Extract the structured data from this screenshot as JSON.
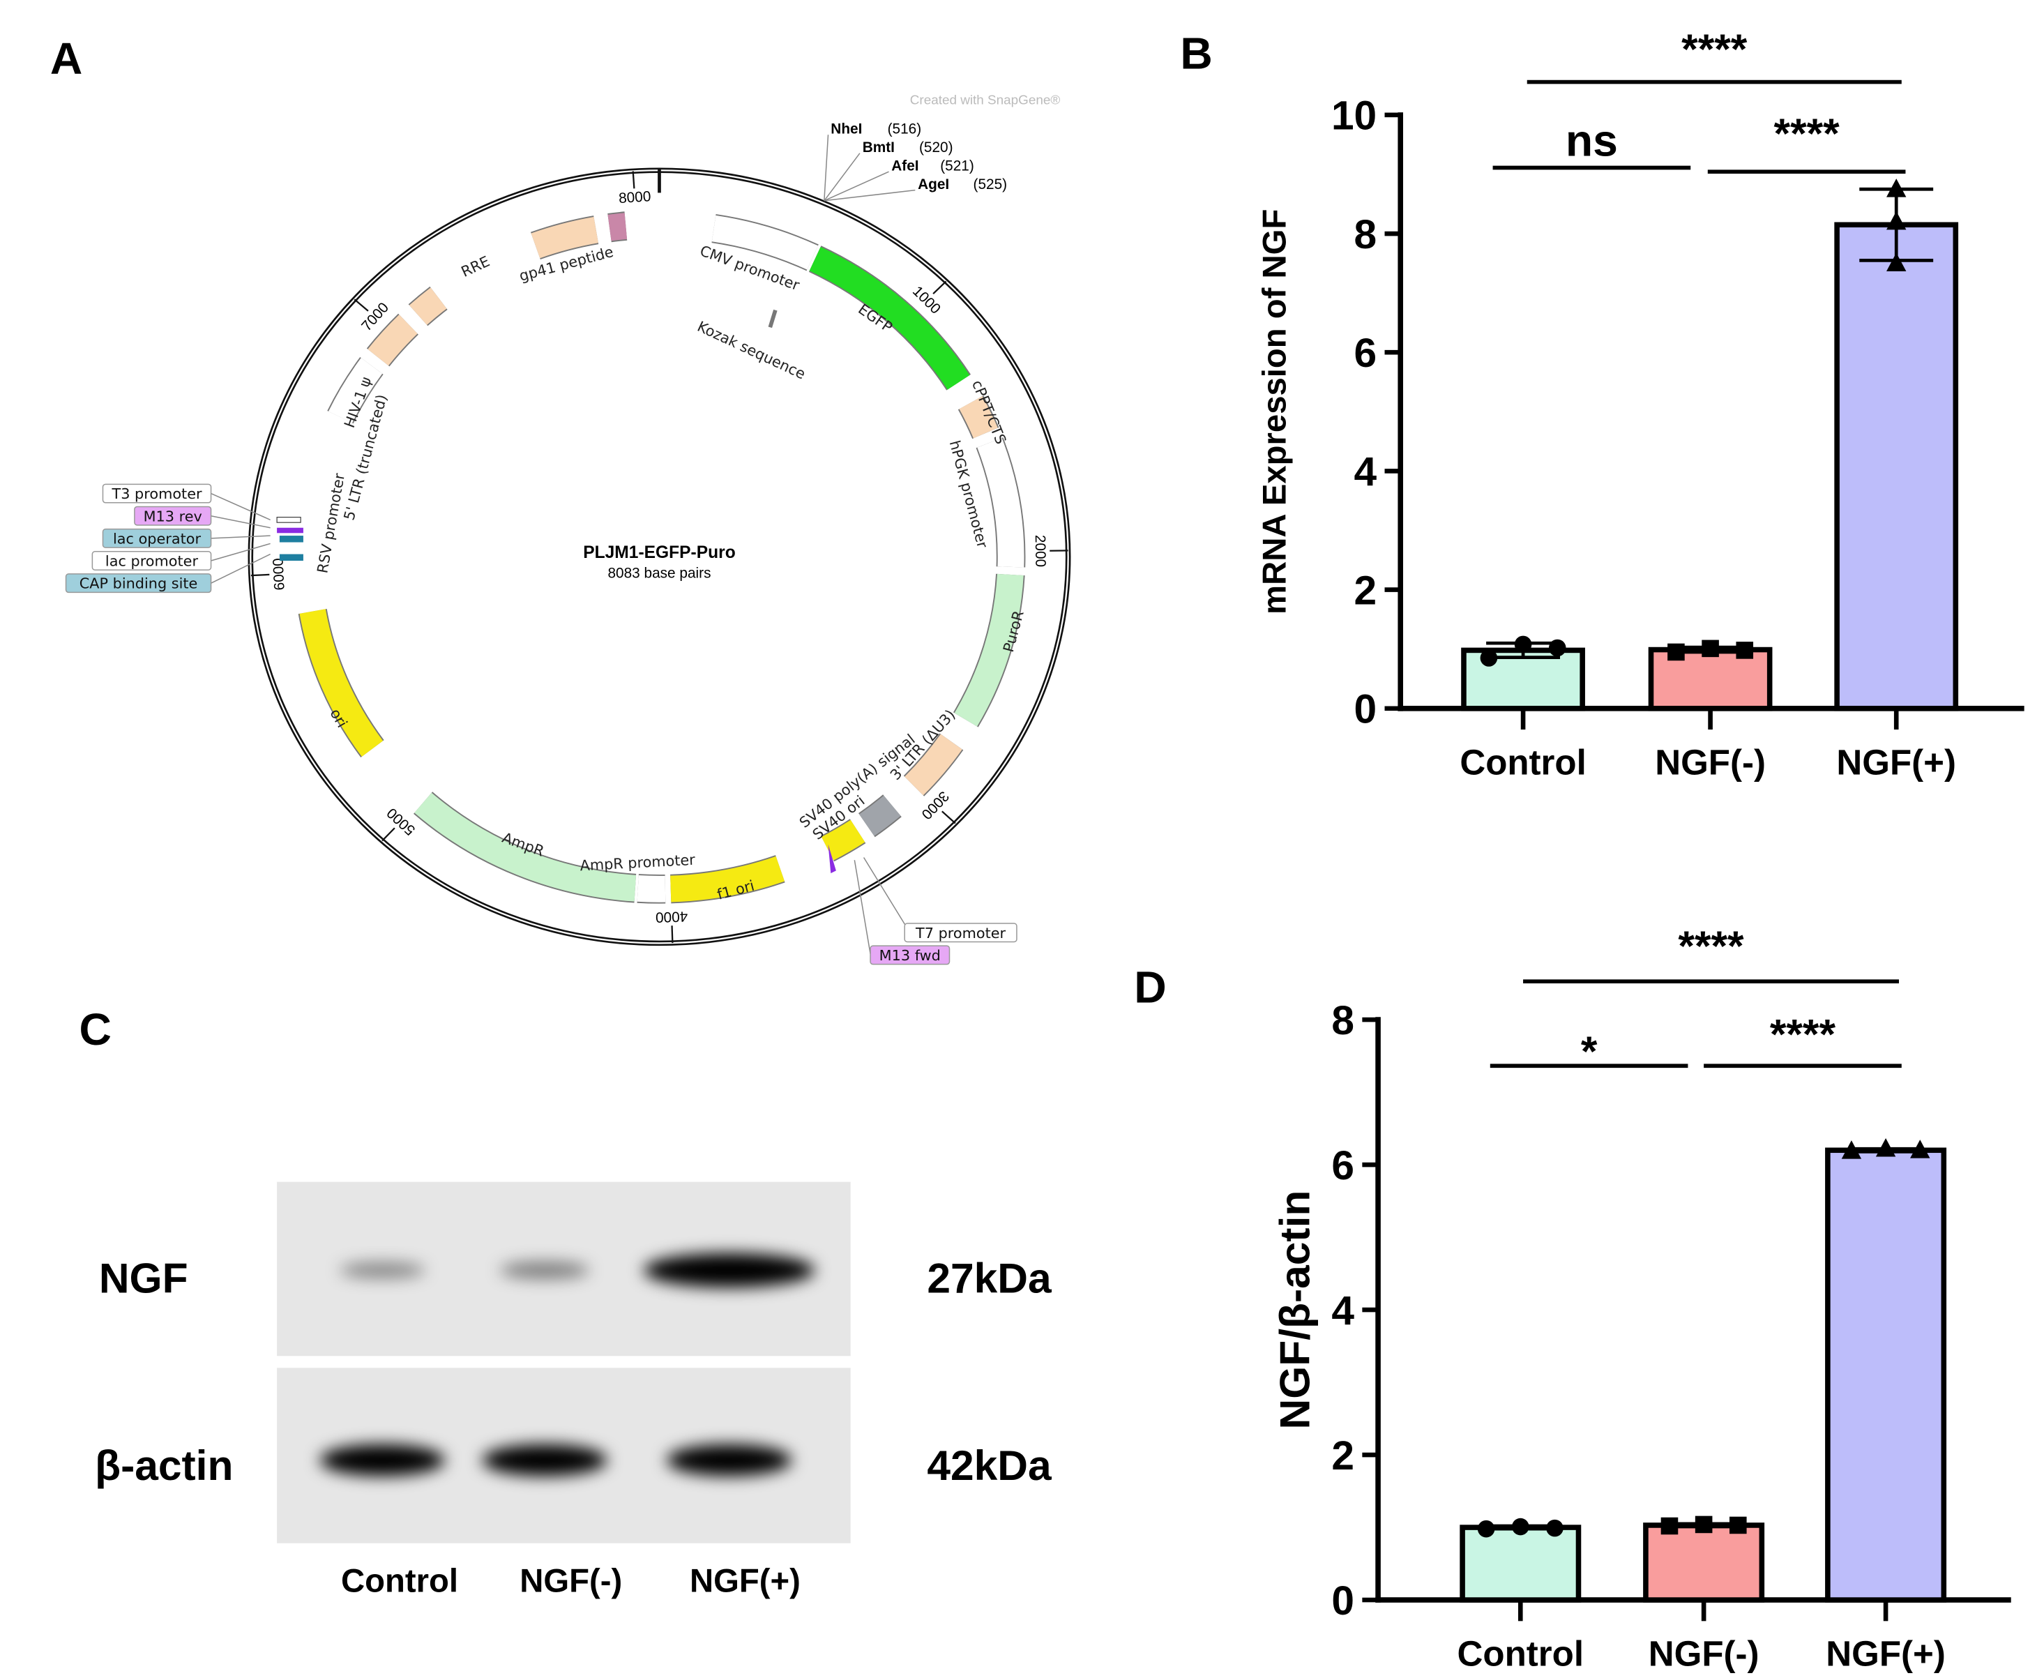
{
  "panels": {
    "a": "A",
    "b": "B",
    "c": "C",
    "d": "D"
  },
  "plasmid": {
    "name": "PLJM1-EGFP-Puro",
    "size_label": "8083 base pairs",
    "total_bp": 8083,
    "credit": "Created with SnapGene®",
    "ticks": [
      "1000",
      "2000",
      "3000",
      "4000",
      "5000",
      "6000",
      "7000",
      "8000"
    ],
    "sites": [
      {
        "name": "NheI",
        "pos": "(516)"
      },
      {
        "name": "BmtI",
        "pos": "(520)"
      },
      {
        "name": "AfeI",
        "pos": "(521)"
      },
      {
        "name": "AgeI",
        "pos": "(525)"
      }
    ],
    "features": [
      {
        "label": "CMV promoter",
        "start": 200,
        "end": 580,
        "color": "#ffffff"
      },
      {
        "label": "EGFP",
        "start": 590,
        "end": 1310,
        "color": "#22dd22"
      },
      {
        "label": "cPPT/CTS",
        "start": 1400,
        "end": 1530,
        "color": "#f9d7b5"
      },
      {
        "label": "hPGK promoter",
        "start": 1570,
        "end": 2060,
        "color": "#ffffff"
      },
      {
        "label": "PuroR",
        "start": 2090,
        "end": 2680,
        "color": "#c8f2cc"
      },
      {
        "label": "3' LTR (ΔU3)",
        "start": 2780,
        "end": 3000,
        "color": "#f9d7b5"
      },
      {
        "label": "SV40 poly(A) signal",
        "start": 3110,
        "end": 3230,
        "color": "#a0a4aa"
      },
      {
        "label": "SV40 ori",
        "start": 3270,
        "end": 3400,
        "color": "#f5ea12"
      },
      {
        "label": "f1 ori",
        "start": 3590,
        "end": 4000,
        "color": "#f5ea12"
      },
      {
        "label": "AmpR promoter",
        "start": 4020,
        "end": 4120,
        "color": "#ffffff"
      },
      {
        "label": "AmpR",
        "start": 4130,
        "end": 4990,
        "color": "#c8f2cc"
      },
      {
        "label": "ori",
        "start": 5270,
        "end": 5850,
        "color": "#f5ea12"
      },
      {
        "label": "RSV promoter",
        "start": 6620,
        "end": 6850,
        "color": "#ffffff"
      },
      {
        "label": "5' LTR (truncated)",
        "start": 6890,
        "end": 7060,
        "color": "#f9d7b5"
      },
      {
        "label": "HIV-1 ψ",
        "start": 7110,
        "end": 7210,
        "color": "#f9d7b5"
      },
      {
        "label": "RRE",
        "start": 7620,
        "end": 7850,
        "color": "#f9d7b5"
      },
      {
        "label": "gp41 peptide",
        "start": 7900,
        "end": 7960,
        "color": "#c987a8"
      },
      {
        "label": "Kozak sequence",
        "start": 0,
        "end": 0,
        "color": "#777777"
      }
    ],
    "tags": [
      {
        "label": "T3 promoter",
        "color": "#ffffff"
      },
      {
        "label": "M13 rev",
        "color": "#e6a8f5"
      },
      {
        "label": "lac operator",
        "color": "#9fcfdc"
      },
      {
        "label": "lac promoter",
        "color": "#ffffff"
      },
      {
        "label": "CAP binding site",
        "color": "#9fcfdc"
      },
      {
        "label": "T7 promoter",
        "color": "#ffffff"
      },
      {
        "label": "M13 fwd",
        "color": "#e6a8f5"
      }
    ]
  },
  "blot": {
    "rows": [
      {
        "label": "NGF",
        "size": "27kDa",
        "intensities": [
          0.25,
          0.3,
          1.0
        ]
      },
      {
        "label": "β-actin",
        "size": "42kDa",
        "intensities": [
          0.95,
          0.95,
          0.95
        ]
      }
    ],
    "lanes": [
      "Control",
      "NGF(-)",
      "NGF(+)"
    ]
  },
  "chart_data": [
    {
      "type": "bar",
      "title": "",
      "ylabel": "mRNA Expression of NGF",
      "xlabel": "",
      "categories": [
        "Control",
        "NGF(-)",
        "NGF(+)"
      ],
      "values": [
        0.98,
        0.99,
        8.15
      ],
      "errors": [
        0.12,
        0.04,
        0.6
      ],
      "points": [
        [
          0.85,
          1.08,
          1.02
        ],
        [
          0.95,
          1.01,
          0.98
        ],
        [
          7.5,
          8.2,
          8.75
        ]
      ],
      "markers": [
        "circle",
        "square",
        "triangle"
      ],
      "colors": [
        "#c9f5e4",
        "#f99d9d",
        "#bdbdfa"
      ],
      "ylim": [
        0,
        10
      ],
      "yticks": [
        "0",
        "2",
        "4",
        "6",
        "8",
        "10"
      ],
      "significance": [
        {
          "from": 0,
          "to": 2,
          "label": "****"
        },
        {
          "from": 0,
          "to": 1,
          "label": "ns"
        },
        {
          "from": 1,
          "to": 2,
          "label": "****"
        }
      ]
    },
    {
      "type": "bar",
      "title": "",
      "ylabel": "NGF/β-actin",
      "xlabel": "",
      "categories": [
        "Control",
        "NGF(-)",
        "NGF(+)"
      ],
      "values": [
        1.0,
        1.03,
        6.2
      ],
      "errors": [
        0.02,
        0.02,
        0.02
      ],
      "points": [
        [
          0.98,
          1.01,
          0.99
        ],
        [
          1.02,
          1.04,
          1.03
        ],
        [
          6.19,
          6.22,
          6.2
        ]
      ],
      "markers": [
        "circle",
        "square",
        "triangle"
      ],
      "colors": [
        "#c9f5e4",
        "#f99d9d",
        "#bdbdfa"
      ],
      "ylim": [
        0,
        8
      ],
      "yticks": [
        "0",
        "2",
        "4",
        "6",
        "8"
      ],
      "significance": [
        {
          "from": 0,
          "to": 2,
          "label": "****"
        },
        {
          "from": 0,
          "to": 1,
          "label": "*"
        },
        {
          "from": 1,
          "to": 2,
          "label": "****"
        }
      ]
    }
  ]
}
